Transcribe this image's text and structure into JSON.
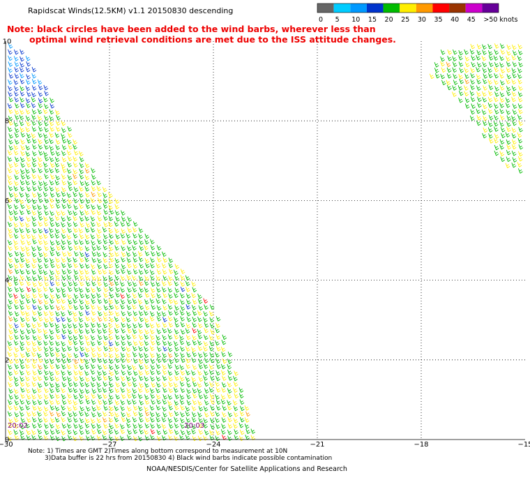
{
  "header": {
    "title": "Rapidscat Winds(12.5KM) v1.1 20150830 descending",
    "note_line1": "Note: black circles have been added to the wind barbs, wherever less than",
    "note_line2": "optimal wind retrieval conditions are met due to the ISS attitude changes."
  },
  "colorbar": {
    "labels": [
      "0",
      "5",
      "10",
      "15",
      "20",
      "25",
      "30",
      "35",
      "40",
      "45",
      ">50 knots"
    ],
    "colors": [
      "#666666",
      "#00ccff",
      "#0099ff",
      "#0033cc",
      "#00bb00",
      "#ffee00",
      "#ff9900",
      "#ff0000",
      "#993300",
      "#cc00cc",
      "#660099"
    ]
  },
  "footer": {
    "note_line1": "Note: 1) Times are GMT 2)Times along bottom correspond to measurement at 10N",
    "note_line2": "3)Data buffer is 22 hrs from 20150830 4) Black wind barbs indicate possible contamination",
    "credit": "NOAA/NESDIS/Center for Satellite Applications and Research"
  },
  "chart_data": {
    "type": "scatter",
    "subtype": "wind-barb map",
    "x_ticks": [
      -30,
      -27,
      -24,
      -21,
      -18,
      -15
    ],
    "y_ticks": [
      0,
      2,
      4,
      6,
      8,
      10
    ],
    "xlim": [
      -30,
      -15
    ],
    "ylim": [
      0,
      10
    ],
    "grid": true,
    "time_labels": [
      {
        "text": "20:02",
        "lon": -30,
        "lat": 0.35
      },
      {
        "text": "20:03",
        "lon": -24.9,
        "lat": 0.35
      }
    ],
    "swaths": [
      {
        "name": "",
        "time": "20:02",
        "polygon_lonlat": [
          [
            -30,
            10
          ],
          [
            -29.5,
            9.8
          ],
          [
            -27.3,
            6.5
          ],
          [
            -24,
            3.4
          ],
          [
            -22.8,
            0.1
          ],
          [
            -30,
            0.1
          ]
        ],
        "dominant_speed_knots": "15-25"
      },
      {
        "name": "",
        "polygon_lonlat": [
          [
            -17.4,
            9.9
          ],
          [
            -15,
            10
          ],
          [
            -15,
            6.7
          ],
          [
            -15.7,
            7.0
          ],
          [
            -16.9,
            8.5
          ],
          [
            -17.8,
            9.2
          ]
        ],
        "dominant_speed_knots": "15-25"
      }
    ]
  }
}
